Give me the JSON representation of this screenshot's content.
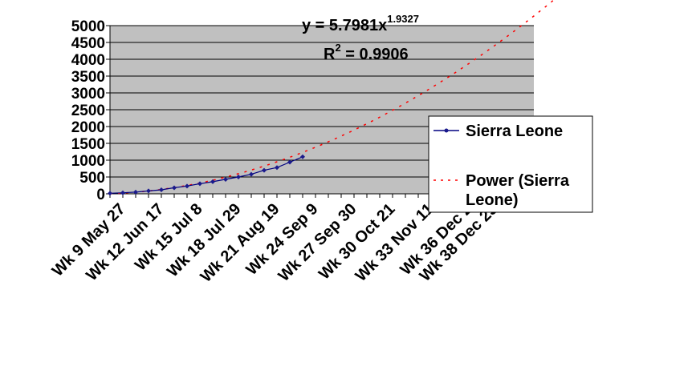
{
  "chart_data": {
    "type": "line",
    "title": "",
    "xlabel": "",
    "ylabel": "",
    "ylim": [
      0,
      5000
    ],
    "yticks": [
      0,
      500,
      1000,
      1500,
      2000,
      2500,
      3000,
      3500,
      4000,
      4500,
      5000
    ],
    "x_tick_labels": [
      "Wk 9 May 27",
      "Wk 12 Jun 17",
      "Wk 15 Jul 8",
      "Wk 18  Jul 29",
      "Wk 21 Aug 19",
      "Wk 24 Sep 9",
      "Wk 27 Sep 30",
      "Wk 30 Oct 21",
      "Wk 33 Nov 11",
      "Wk 36 Dec 2",
      "Wk 38 Dec 23"
    ],
    "x_tick_weeks": [
      9,
      12,
      15,
      18,
      21,
      24,
      27,
      30,
      33,
      36,
      38
    ],
    "grid": true,
    "legend_position": "right",
    "series": [
      {
        "name": "Sierra Leone",
        "style": "solid-with-markers",
        "color": "#000080",
        "marker_color": "#1a1a8c",
        "points": [
          {
            "week": 8,
            "value": 16
          },
          {
            "week": 9,
            "value": 30
          },
          {
            "week": 10,
            "value": 50
          },
          {
            "week": 11,
            "value": 85
          },
          {
            "week": 12,
            "value": 120
          },
          {
            "week": 13,
            "value": 180
          },
          {
            "week": 14,
            "value": 230
          },
          {
            "week": 15,
            "value": 300
          },
          {
            "week": 16,
            "value": 360
          },
          {
            "week": 17,
            "value": 430
          },
          {
            "week": 18,
            "value": 500
          },
          {
            "week": 19,
            "value": 580
          },
          {
            "week": 20,
            "value": 700
          },
          {
            "week": 21,
            "value": 780
          },
          {
            "week": 22,
            "value": 940
          },
          {
            "week": 23,
            "value": 1100
          }
        ]
      },
      {
        "name": "Power (Sierra Leone)",
        "style": "dashed",
        "color": "#ff0000",
        "equation": {
          "a": 5.7981,
          "b": 1.9327,
          "x_start": 1,
          "x_end": 38,
          "x_offset": 7
        }
      }
    ],
    "annotations": {
      "equation_text": "y = 5.7981x",
      "equation_exponent": "1.9327",
      "r2_label": "R",
      "r2_exponent": "2",
      "r2_value": " = 0.9906"
    },
    "plot_background": "#c0c0c0",
    "grid_color": "#000000"
  }
}
